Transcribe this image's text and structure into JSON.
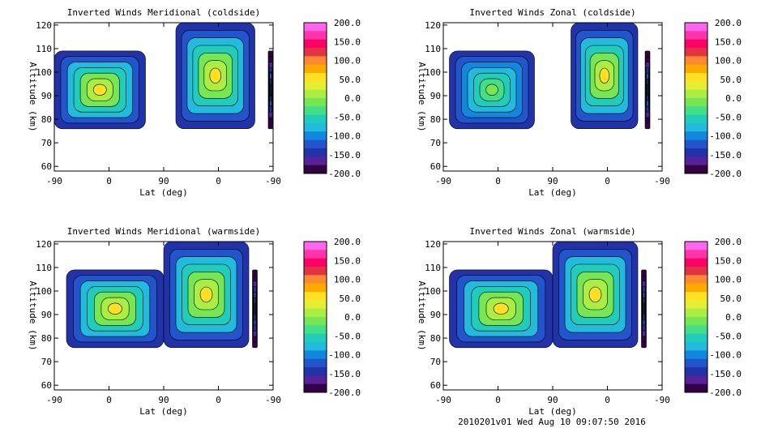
{
  "footer": {
    "stamp": "2010201v01 Wed Aug 10 09:07:50 2016"
  },
  "chart_data": [
    {
      "type": "heatmap",
      "title": "Inverted Winds Meridional (coldside)",
      "xlabel": "Lat (deg)",
      "ylabel": "Altitude (km)",
      "x_ticks": [
        "-90",
        "0",
        "90",
        "0",
        "-90"
      ],
      "y_ticks": [
        60,
        70,
        80,
        90,
        100,
        110,
        120
      ],
      "ylim": [
        58,
        121
      ],
      "regions": [
        {
          "lat": [
            -90,
            60
          ],
          "alt": [
            76,
            109
          ],
          "value_range": [
            -150,
            50
          ]
        },
        {
          "lat": [
            110,
            240
          ],
          "alt": [
            76,
            121
          ],
          "value_range": [
            -150,
            50
          ]
        },
        {
          "lat": [
            262,
            270
          ],
          "alt": [
            76,
            109
          ],
          "value_range": [
            -200,
            -100
          ]
        }
      ]
    },
    {
      "type": "heatmap",
      "title": "Inverted Winds Zonal (coldside)",
      "xlabel": "Lat (deg)",
      "ylabel": "Altitude (km)",
      "x_ticks": [
        "-90",
        "0",
        "90",
        "0",
        "-90"
      ],
      "y_ticks": [
        60,
        70,
        80,
        90,
        100,
        110,
        120
      ],
      "ylim": [
        58,
        121
      ],
      "regions": [
        {
          "lat": [
            -80,
            60
          ],
          "alt": [
            76,
            109
          ],
          "value_range": [
            -150,
            0
          ]
        },
        {
          "lat": [
            120,
            230
          ],
          "alt": [
            76,
            121
          ],
          "value_range": [
            -150,
            50
          ]
        },
        {
          "lat": [
            242,
            250
          ],
          "alt": [
            76,
            109
          ],
          "value_range": [
            -200,
            -100
          ]
        }
      ]
    },
    {
      "type": "heatmap",
      "title": "Inverted Winds Meridional (warmside)",
      "xlabel": "Lat (deg)",
      "ylabel": "Altitude (km)",
      "x_ticks": [
        "-90",
        "0",
        "90",
        "0",
        "-90"
      ],
      "y_ticks": [
        60,
        70,
        80,
        90,
        100,
        110,
        120
      ],
      "ylim": [
        58,
        121
      ],
      "regions": [
        {
          "lat": [
            -70,
            90
          ],
          "alt": [
            76,
            109
          ],
          "value_range": [
            -150,
            50
          ]
        },
        {
          "lat": [
            90,
            230
          ],
          "alt": [
            76,
            121
          ],
          "value_range": [
            -150,
            50
          ]
        },
        {
          "lat": [
            236,
            244
          ],
          "alt": [
            76,
            109
          ],
          "value_range": [
            -200,
            -100
          ]
        }
      ]
    },
    {
      "type": "heatmap",
      "title": "Inverted Winds Zonal (warmside)",
      "xlabel": "Lat (deg)",
      "ylabel": "Altitude (km)",
      "x_ticks": [
        "-90",
        "0",
        "90",
        "0",
        "-90"
      ],
      "y_ticks": [
        60,
        70,
        80,
        90,
        100,
        110,
        120
      ],
      "ylim": [
        58,
        121
      ],
      "regions": [
        {
          "lat": [
            -80,
            90
          ],
          "alt": [
            76,
            109
          ],
          "value_range": [
            -150,
            50
          ]
        },
        {
          "lat": [
            90,
            230
          ],
          "alt": [
            76,
            121
          ],
          "value_range": [
            -150,
            50
          ]
        },
        {
          "lat": [
            236,
            244
          ],
          "alt": [
            76,
            109
          ],
          "value_range": [
            -200,
            -100
          ]
        }
      ]
    }
  ],
  "colorbar": {
    "labels": [
      "200.0",
      "150.0",
      "100.0",
      "50.0",
      "0.0",
      "-50.0",
      "-100.0",
      "-150.0",
      "-200.0"
    ],
    "colors": [
      "#ff66ee",
      "#ff33aa",
      "#ff0066",
      "#e03344",
      "#ff8833",
      "#ffaa00",
      "#ffe022",
      "#e6ee33",
      "#aaee44",
      "#77e655",
      "#44dd88",
      "#22ccbb",
      "#22bbdd",
      "#1188dd",
      "#2255cc",
      "#2233aa",
      "#552299",
      "#330044"
    ]
  }
}
